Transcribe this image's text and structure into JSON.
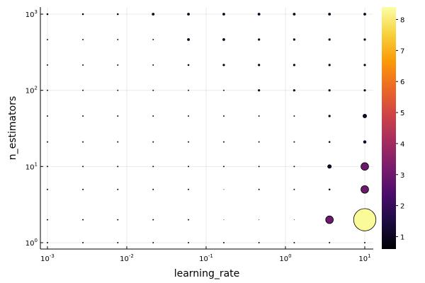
{
  "chart_data": {
    "type": "scatter",
    "title": "",
    "xlabel": "learning_rate",
    "ylabel": "n_estimators",
    "xscale": "log",
    "yscale": "log",
    "xlim": [
      0.001,
      10
    ],
    "ylim": [
      1,
      1000
    ],
    "x_tick_labels": [
      {
        "value": 0.001,
        "base": "10",
        "exp": "-3"
      },
      {
        "value": 0.01,
        "base": "10",
        "exp": "-2"
      },
      {
        "value": 0.1,
        "base": "10",
        "exp": "-1"
      },
      {
        "value": 1,
        "base": "10",
        "exp": "0"
      },
      {
        "value": 10,
        "base": "10",
        "exp": "1"
      }
    ],
    "y_tick_labels": [
      {
        "value": 1,
        "base": "10",
        "exp": "0"
      },
      {
        "value": 10,
        "base": "10",
        "exp": "1"
      },
      {
        "value": 100,
        "base": "10",
        "exp": "2"
      },
      {
        "value": 1000,
        "base": "10",
        "exp": "3"
      }
    ],
    "x_values": [
      0.001,
      0.0028,
      0.0077,
      0.0215,
      0.0599,
      0.167,
      0.464,
      1.29,
      3.59,
      10
    ],
    "y_values": [
      1,
      2,
      5,
      10,
      21,
      46,
      100,
      215,
      464,
      1000
    ],
    "z_values": [
      [
        0.7,
        0.7,
        0.7,
        0.7,
        0.7,
        0.7,
        0.7,
        0.7,
        0.7,
        0.7
      ],
      [
        0.7,
        0.7,
        0.7,
        0.7,
        0.7,
        0.55,
        0.5,
        0.5,
        3.0,
        8.3
      ],
      [
        0.7,
        0.7,
        0.7,
        0.7,
        0.7,
        0.5,
        0.7,
        0.7,
        0.8,
        3.0
      ],
      [
        0.7,
        0.7,
        0.7,
        0.7,
        0.7,
        0.7,
        0.7,
        0.7,
        1.2,
        3.0
      ],
      [
        0.7,
        0.7,
        0.7,
        0.7,
        0.7,
        0.7,
        0.7,
        0.7,
        0.8,
        1.1
      ],
      [
        0.7,
        0.7,
        0.7,
        0.7,
        0.7,
        0.7,
        0.7,
        0.7,
        0.9,
        1.2
      ],
      [
        0.7,
        0.7,
        0.7,
        0.7,
        0.7,
        0.7,
        0.9,
        0.9,
        0.9,
        0.9
      ],
      [
        0.7,
        0.7,
        0.7,
        0.7,
        0.8,
        0.9,
        0.9,
        0.9,
        0.9,
        0.9
      ],
      [
        0.7,
        0.7,
        0.7,
        0.7,
        1.0,
        1.0,
        0.9,
        0.9,
        0.9,
        0.9
      ],
      [
        0.8,
        0.8,
        0.8,
        1.0,
        1.0,
        1.0,
        1.0,
        1.0,
        1.0,
        1.0
      ]
    ],
    "colorbar": {
      "min": 0.6,
      "max": 8.4,
      "ticks": [
        "1",
        "2",
        "3",
        "4",
        "5",
        "6",
        "7",
        "8"
      ],
      "colormap": "inferno",
      "stops": [
        "#000004",
        "#1b0c41",
        "#4a0c6b",
        "#781c6d",
        "#a52c60",
        "#cf4446",
        "#ed6925",
        "#fb9b06",
        "#f7d13d",
        "#fcffa4"
      ]
    },
    "grid": true,
    "legend": "none"
  }
}
